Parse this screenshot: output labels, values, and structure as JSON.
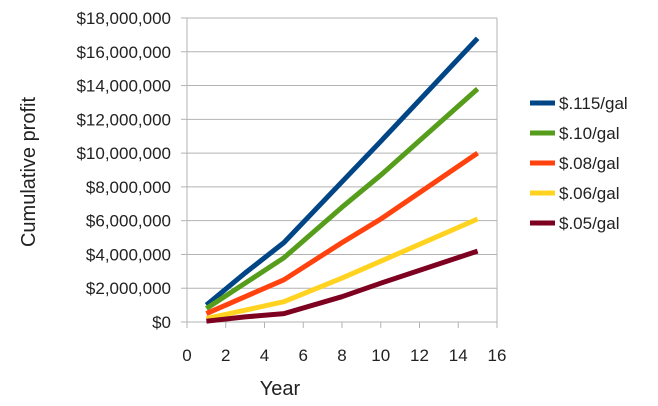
{
  "chart_data": {
    "type": "line",
    "title": "",
    "xlabel": "Year",
    "ylabel": "Cumulative profit",
    "xlim": [
      0,
      16
    ],
    "ylim": [
      0,
      18000000
    ],
    "x_ticks": [
      0,
      2,
      4,
      6,
      8,
      10,
      12,
      14,
      16
    ],
    "x_tick_labels": [
      "0",
      "2",
      "4",
      "6",
      "8",
      "10",
      "12",
      "14",
      "16"
    ],
    "y_ticks": [
      0,
      2000000,
      4000000,
      6000000,
      8000000,
      10000000,
      12000000,
      14000000,
      16000000,
      18000000
    ],
    "y_tick_labels": [
      "$0",
      "$2,000,000",
      "$4,000,000",
      "$6,000,000",
      "$8,000,000",
      "$10,000,000",
      "$12,000,000",
      "$14,000,000",
      "$16,000,000",
      "$18,000,000"
    ],
    "grid": true,
    "legend_position": "right",
    "series": [
      {
        "name": "$.115/gal",
        "color": "#004586",
        "x": [
          1,
          3,
          5,
          8,
          10,
          15
        ],
        "values": [
          1000000,
          2900000,
          4700000,
          8300000,
          10700000,
          16800000
        ]
      },
      {
        "name": "$.10/gal",
        "color": "#579D1C",
        "x": [
          1,
          3,
          5,
          8,
          10,
          15
        ],
        "values": [
          800000,
          2300000,
          3800000,
          6800000,
          8700000,
          13800000
        ]
      },
      {
        "name": "$.08/gal",
        "color": "#FF420E",
        "x": [
          1,
          3,
          5,
          8,
          10,
          15
        ],
        "values": [
          500000,
          1500000,
          2500000,
          4700000,
          6100000,
          10000000
        ]
      },
      {
        "name": "$.06/gal",
        "color": "#FFD320",
        "x": [
          1,
          3,
          5,
          8,
          10,
          15
        ],
        "values": [
          200000,
          700000,
          1200000,
          2600000,
          3600000,
          6100000
        ]
      },
      {
        "name": "$.05/gal",
        "color": "#7E0021",
        "x": [
          1,
          3,
          5,
          8,
          10,
          15
        ],
        "values": [
          50000,
          300000,
          500000,
          1500000,
          2300000,
          4200000
        ]
      }
    ]
  }
}
